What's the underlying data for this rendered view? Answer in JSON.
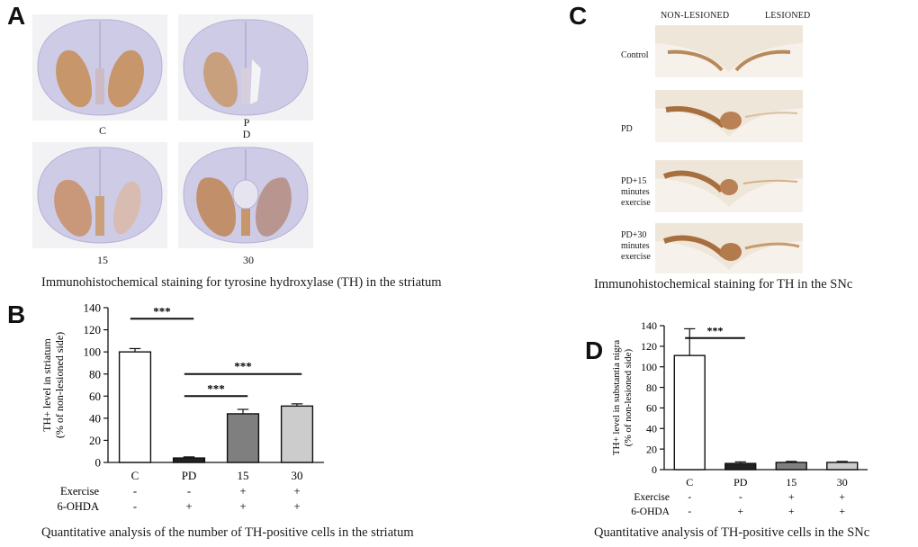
{
  "panels": {
    "A": {
      "letter": "A",
      "labels": [
        "C",
        "P\nD",
        "15",
        "30"
      ],
      "caption": "Immunohistochemical staining for tyrosine hydroxylase (TH) in the striatum"
    },
    "C": {
      "letter": "C",
      "col_left": "NON-LESIONED",
      "col_right": "LESIONED",
      "rows": [
        "Control",
        "PD",
        "PD+15\nminutes\nexercise",
        "PD+30\nminutes\nexercise"
      ],
      "caption": "Immunohistochemical staining for TH in the SNc"
    },
    "B": {
      "letter": "B",
      "caption": "Quantitative analysis of the number of TH-positive cells in the striatum"
    },
    "D": {
      "letter": "D",
      "caption": "Quantitative analysis of TH-positive cells in the SNc"
    }
  },
  "colors": {
    "stain": "#c99a6e",
    "tissue": "#cfcde6",
    "bar_pd": "#222222",
    "bar_15": "#7f7f7f",
    "bar_30": "#cccccc"
  },
  "chart_data": [
    {
      "panel": "B",
      "type": "bar",
      "categories": [
        "C",
        "PD",
        "15",
        "30"
      ],
      "values": [
        100,
        4,
        44,
        51
      ],
      "errors": [
        3,
        1,
        4,
        2
      ],
      "bar_colors": [
        "#ffffff",
        "#222222",
        "#7f7f7f",
        "#cccccc"
      ],
      "ylabel": "TH+ level in striatum\n(% of non-lesioned side)",
      "ylim": [
        0,
        140
      ],
      "yticks": [
        0,
        20,
        40,
        60,
        80,
        100,
        120,
        140
      ],
      "rows": [
        {
          "label": "Exercise",
          "values": [
            "-",
            "-",
            "+",
            "+"
          ]
        },
        {
          "label": "6-OHDA",
          "values": [
            "-",
            "+",
            "+",
            "+"
          ]
        }
      ],
      "significance": [
        {
          "from": 0,
          "to": 1,
          "y": 130,
          "label": "***"
        },
        {
          "from": 1,
          "to": 3,
          "y": 80,
          "label": "***"
        },
        {
          "from": 1,
          "to": 2,
          "y": 60,
          "label": "***"
        }
      ]
    },
    {
      "panel": "D",
      "type": "bar",
      "categories": [
        "C",
        "PD",
        "15",
        "30"
      ],
      "values": [
        111,
        6,
        7,
        7
      ],
      "errors": [
        26,
        1.5,
        1,
        1
      ],
      "bar_colors": [
        "#ffffff",
        "#222222",
        "#7f7f7f",
        "#cccccc"
      ],
      "ylabel": "TH+ level in substantia nigra\n(% of non-lesioned side)",
      "ylim": [
        0,
        140
      ],
      "yticks": [
        0,
        20,
        40,
        60,
        80,
        100,
        120,
        140
      ],
      "rows": [
        {
          "label": "Exercise",
          "values": [
            "-",
            "-",
            "+",
            "+"
          ]
        },
        {
          "label": "6-OHDA",
          "values": [
            "-",
            "+",
            "+",
            "+"
          ]
        }
      ],
      "significance": [
        {
          "from": 0,
          "to": 1,
          "y": 128,
          "label": "***"
        }
      ]
    }
  ]
}
